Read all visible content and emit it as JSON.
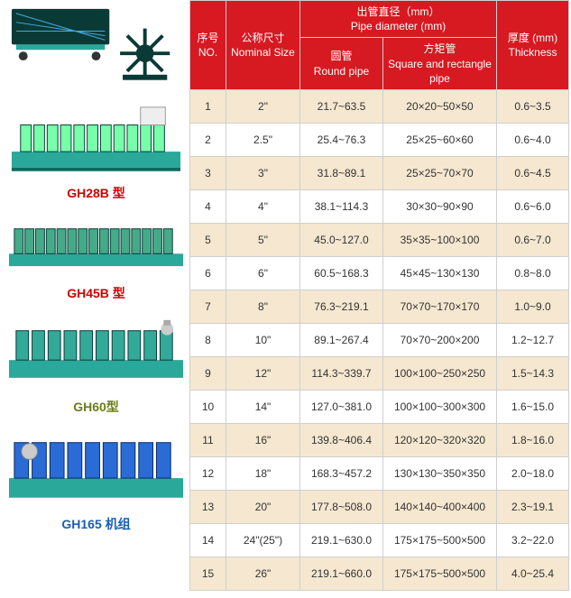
{
  "headers": {
    "no": {
      "cn": "序号",
      "en": "NO."
    },
    "nominal": {
      "cn": "公称尺寸",
      "en": "Nominal Size"
    },
    "diameter_group": {
      "cn": "出管直径（mm）",
      "en": "Pipe diameter (mm)"
    },
    "round": {
      "cn": "圆管",
      "en": "Round pipe"
    },
    "square": {
      "cn": "方矩管",
      "en": "Square and rectangle pipe"
    },
    "thickness": {
      "cn": "厚度 (mm)",
      "en": "Thickness"
    }
  },
  "rows": [
    {
      "no": "1",
      "nom": "2\"",
      "rp": "21.7~63.5",
      "sq": "20×20~50×50",
      "th": "0.6~3.5"
    },
    {
      "no": "2",
      "nom": "2.5\"",
      "rp": "25.4~76.3",
      "sq": "25×25~60×60",
      "th": "0.6~4.0"
    },
    {
      "no": "3",
      "nom": "3\"",
      "rp": "31.8~89.1",
      "sq": "25×25~70×70",
      "th": "0.6~4.5"
    },
    {
      "no": "4",
      "nom": "4\"",
      "rp": "38.1~114.3",
      "sq": "30×30~90×90",
      "th": "0.6~6.0"
    },
    {
      "no": "5",
      "nom": "5\"",
      "rp": "45.0~127.0",
      "sq": "35×35~100×100",
      "th": "0.6~7.0"
    },
    {
      "no": "6",
      "nom": "6\"",
      "rp": "60.5~168.3",
      "sq": "45×45~130×130",
      "th": "0.8~8.0"
    },
    {
      "no": "7",
      "nom": "8\"",
      "rp": "76.3~219.1",
      "sq": "70×70~170×170",
      "th": "1.0~9.0"
    },
    {
      "no": "8",
      "nom": "10\"",
      "rp": "89.1~267.4",
      "sq": "70×70~200×200",
      "th": "1.2~12.7"
    },
    {
      "no": "9",
      "nom": "12\"",
      "rp": "114.3~339.7",
      "sq": "100×100~250×250",
      "th": "1.5~14.3"
    },
    {
      "no": "10",
      "nom": "14\"",
      "rp": "127.0~381.0",
      "sq": "100×100~300×300",
      "th": "1.6~15.0"
    },
    {
      "no": "11",
      "nom": "16\"",
      "rp": "139.8~406.4",
      "sq": "120×120~320×320",
      "th": "1.8~16.0"
    },
    {
      "no": "12",
      "nom": "18\"",
      "rp": "168.3~457.2",
      "sq": "130×130~350×350",
      "th": "2.0~18.0"
    },
    {
      "no": "13",
      "nom": "20\"",
      "rp": "177.8~508.0",
      "sq": "140×140~400×400",
      "th": "2.3~19.1"
    },
    {
      "no": "14",
      "nom": "24\"(25\")",
      "rp": "219.1~630.0",
      "sq": "175×175~500×500",
      "th": "3.2~22.0"
    },
    {
      "no": "15",
      "nom": "26\"",
      "rp": "219.1~660.0",
      "sq": "175×175~500×500",
      "th": "4.0~25.4"
    }
  ],
  "machines": [
    {
      "id": "m0",
      "label": "",
      "color_class": ""
    },
    {
      "id": "m1",
      "label": "GH28B 型",
      "color_class": "label-red"
    },
    {
      "id": "m2",
      "label": "GH45B 型",
      "color_class": "label-red"
    },
    {
      "id": "m3",
      "label": "GH60型",
      "color_class": "label-olive"
    },
    {
      "id": "m4",
      "label": "GH165 机组",
      "color_class": "label-blue"
    }
  ],
  "colors": {
    "header_bg": "#d71921",
    "header_fg": "#ffffff",
    "row_bg": "#ffffff",
    "row_alt_bg": "#f5e7d0",
    "border": "#cfcfcf",
    "machine_teal": "#2aa89a",
    "machine_dark": "#0a3a36",
    "machine_blue": "#2a6bd6"
  }
}
